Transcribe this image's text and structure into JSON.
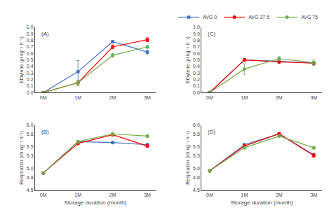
{
  "chart_data": [
    {
      "type": "line",
      "annotations": [
        "(A)"
      ],
      "ylabel": "Ethylene (µl kg⁻¹ h⁻¹)",
      "categories": [
        "0M",
        "1M",
        "2M",
        "3M"
      ],
      "series": [
        {
          "name": "AVG 0",
          "color": "#4472C4",
          "marker": "circle",
          "values": [
            0.0,
            0.32,
            0.78,
            0.62
          ],
          "errors": [
            0.0,
            0.17,
            0.02,
            0.03
          ]
        },
        {
          "name": "AVG 37.5",
          "color": "#FF0000",
          "marker": "circle",
          "values": [
            0.0,
            0.15,
            0.7,
            0.81
          ],
          "errors": [
            0.0,
            0.04,
            0.03,
            0.03
          ]
        },
        {
          "name": "AVG 75",
          "color": "#70AD47",
          "marker": "circle",
          "values": [
            0.0,
            0.15,
            0.57,
            0.7
          ],
          "errors": [
            0.0,
            0.04,
            0.03,
            0.02
          ]
        }
      ],
      "ylim": [
        0.0,
        1.0
      ],
      "yticks": [
        {
          "value": 0,
          "label": "0.0"
        },
        0.1,
        0.2,
        0.3,
        0.4,
        0.5,
        0.6,
        0.7,
        0.8,
        0.9,
        {
          "value": 1,
          "label": "1.0"
        }
      ],
      "grid": false
    },
    {
      "type": "line",
      "annotations": [
        "(B)"
      ],
      "ylabel": "Respiration (ml kg⁻¹ h⁻¹)",
      "xlabel": "Storage duration (month)",
      "categories": [
        "0M",
        "1M",
        "2M",
        "3M"
      ],
      "series": [
        {
          "name": "AVG 0",
          "color": "#4472C4",
          "marker": "circle",
          "values": [
            4.9,
            5.62,
            5.6,
            5.55
          ],
          "errors": [
            0.01,
            0.03,
            0.03,
            0.03
          ]
        },
        {
          "name": "AVG 37.5",
          "color": "#FF0000",
          "marker": "circle",
          "values": [
            4.9,
            5.58,
            5.78,
            5.52
          ],
          "errors": [
            0.01,
            0.03,
            0.03,
            0.03
          ]
        },
        {
          "name": "AVG 75",
          "color": "#70AD47",
          "marker": "circle",
          "values": [
            4.9,
            5.62,
            5.8,
            5.75
          ],
          "errors": [
            0.01,
            0.03,
            0.03,
            0.03
          ]
        }
      ],
      "ylim": [
        4.5,
        6.0
      ],
      "yticks": [
        4.5,
        4.8,
        {
          "value": 5,
          "label": "5.0"
        },
        5.3,
        5.5,
        5.8,
        {
          "value": 6,
          "label": "6.0"
        }
      ],
      "grid": false
    },
    {
      "type": "line",
      "annotations": [
        "(C)"
      ],
      "ylabel": "Ethylene (µl kg⁻¹ h⁻¹)",
      "categories": [
        "0M",
        "1M",
        "2M",
        "3M"
      ],
      "series": [
        {
          "name": "AVG 0",
          "color": "#4472C4",
          "marker": "circle",
          "values": [
            0.0,
            0.5,
            0.48,
            0.45
          ],
          "errors": [
            0.0,
            0.02,
            0.02,
            0.03
          ]
        },
        {
          "name": "AVG 37.5",
          "color": "#FF0000",
          "marker": "circle",
          "values": [
            0.0,
            0.5,
            0.47,
            0.45
          ],
          "errors": [
            0.0,
            0.02,
            0.02,
            0.02
          ]
        },
        {
          "name": "AVG 75",
          "color": "#70AD47",
          "marker": "circle",
          "values": [
            0.0,
            0.36,
            0.52,
            0.46
          ],
          "errors": [
            0.0,
            0.08,
            0.03,
            0.04
          ]
        }
      ],
      "ylim": [
        0.0,
        1.0
      ],
      "yticks": [
        {
          "value": 0,
          "label": "0.0"
        },
        0.1,
        0.2,
        0.3,
        0.4,
        0.5,
        0.6,
        0.7,
        0.8,
        0.9,
        {
          "value": 1,
          "label": "1.0"
        }
      ],
      "grid": false,
      "legend": "upper right"
    },
    {
      "type": "line",
      "annotations": [
        "(D)"
      ],
      "ylabel": "Respiration (ml kg⁻¹ h⁻¹)",
      "xlabel": "Storage duration (month)",
      "categories": [
        "0M",
        "1M",
        "2M",
        "3M"
      ],
      "series": [
        {
          "name": "AVG 0",
          "color": "#4472C4",
          "marker": "circle",
          "values": [
            4.95,
            5.55,
            5.8,
            5.32
          ],
          "errors": [
            0.01,
            0.03,
            0.03,
            0.03
          ]
        },
        {
          "name": "AVG 37.5",
          "color": "#FF0000",
          "marker": "circle",
          "values": [
            4.95,
            5.52,
            5.8,
            5.3
          ],
          "errors": [
            0.01,
            0.03,
            0.03,
            0.04
          ]
        },
        {
          "name": "AVG 75",
          "color": "#70AD47",
          "marker": "circle",
          "values": [
            4.95,
            5.48,
            5.75,
            5.48
          ],
          "errors": [
            0.01,
            0.03,
            0.03,
            0.03
          ]
        }
      ],
      "ylim": [
        4.5,
        6.0
      ],
      "yticks": [
        4.5,
        4.8,
        {
          "value": 5,
          "label": "5.0"
        },
        5.3,
        5.5,
        5.8,
        {
          "value": 6,
          "label": "6.0"
        }
      ],
      "grid": false
    }
  ]
}
